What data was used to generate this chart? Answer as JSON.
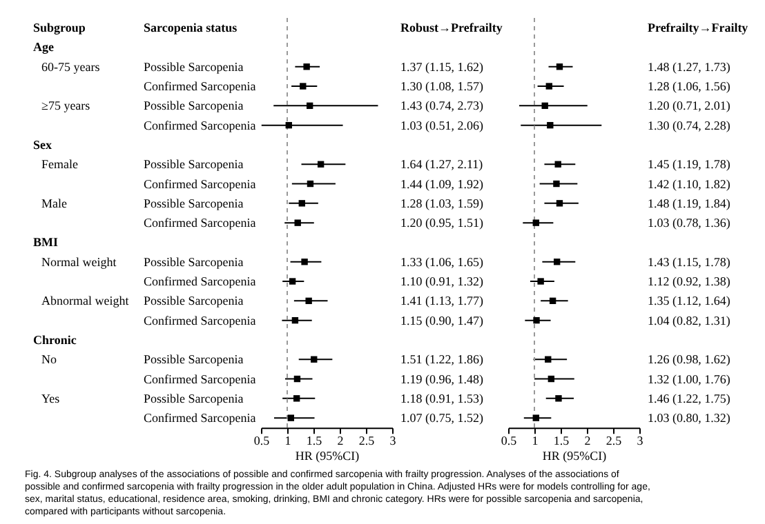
{
  "chart_data": [
    {
      "type": "scatter",
      "orientation": "horizontal",
      "title": "Robust→Prefrailty",
      "ylabel": "Sarcopenia status",
      "xlabel": "HR (95%CI)",
      "marker": "square",
      "color": "#000000",
      "categories": [
        null,
        "Possible Sarcopenia",
        "Confirmed Sarcopenia",
        "Possible Sarcopenia",
        "Confirmed Sarcopenia",
        null,
        "Possible Sarcopenia",
        "Confirmed Sarcopenia",
        "Possible Sarcopenia",
        "Confirmed Sarcopenia",
        null,
        "Possible Sarcopenia",
        "Confirmed Sarcopenia",
        "Possible Sarcopenia",
        "Confirmed Sarcopenia",
        null,
        "Possible Sarcopenia",
        "Confirmed Sarcopenia",
        "Possible Sarcopenia",
        "Confirmed Sarcopenia"
      ],
      "values": [
        null,
        1.37,
        1.3,
        1.43,
        1.03,
        null,
        1.64,
        1.44,
        1.28,
        1.2,
        null,
        1.33,
        1.1,
        1.41,
        1.15,
        null,
        1.51,
        1.19,
        1.18,
        1.07
      ],
      "errors": [
        null,
        [
          1.15,
          1.62
        ],
        [
          1.08,
          1.57
        ],
        [
          0.74,
          2.73
        ],
        [
          0.51,
          2.06
        ],
        null,
        [
          1.27,
          2.11
        ],
        [
          1.09,
          1.92
        ],
        [
          1.03,
          1.59
        ],
        [
          0.95,
          1.51
        ],
        null,
        [
          1.06,
          1.65
        ],
        [
          0.91,
          1.32
        ],
        [
          1.13,
          1.77
        ],
        [
          0.9,
          1.47
        ],
        null,
        [
          1.22,
          1.86
        ],
        [
          0.96,
          1.48
        ],
        [
          0.91,
          1.53
        ],
        [
          0.75,
          1.52
        ]
      ],
      "value_labels": [
        null,
        "1.37 (1.15, 1.62)",
        "1.30 (1.08, 1.57)",
        "1.43 (0.74, 2.73)",
        "1.03 (0.51, 2.06)",
        null,
        "1.64 (1.27, 2.11)",
        "1.44 (1.09, 1.92)",
        "1.28 (1.03, 1.59)",
        "1.20 (0.95, 1.51)",
        null,
        "1.33 (1.06, 1.65)",
        "1.10 (0.91, 1.32)",
        "1.41 (1.13, 1.77)",
        "1.15 (0.90, 1.47)",
        null,
        "1.51 (1.22, 1.86)",
        "1.19 (0.96, 1.48)",
        "1.18 (0.91, 1.53)",
        "1.07 (0.75, 1.52)"
      ],
      "xlim": [
        0.5,
        3
      ],
      "xticks": [
        0.5,
        1,
        1.5,
        2,
        2.5,
        3
      ],
      "ref_lines": [
        {
          "axis": "x",
          "value": 1,
          "line_style": "dashed",
          "color": "#999999"
        }
      ],
      "annotations": [
        "Subgroup",
        "Age",
        "60-75 years",
        "≥75 years",
        "Sex",
        "Female",
        "Male",
        "BMI",
        "Normal weight",
        "Abnormal weight",
        "Chronic",
        "No",
        "Yes",
        "Fig. 4. Subgroup analyses of the associations of possible and confirmed sarcopenia with frailty progression. Analyses of the associations of possible and confirmed sarcopenia with frailty progression in the older adult population in China. Adjusted HRs were for models controlling for age, sex, marital status, educational, residence area, smoking, drinking, BMI and chronic category. HRs were for possible sarcopenia and sarcopenia, compared with participants without sarcopenia."
      ]
    },
    {
      "type": "scatter",
      "orientation": "horizontal",
      "title": "Prefrailty→Frailty",
      "xlabel": "HR (95%CI)",
      "marker": "square",
      "color": "#000000",
      "categories": [
        null,
        null,
        null,
        null,
        null,
        null,
        null,
        null,
        null,
        null,
        null,
        null,
        null,
        null,
        null,
        null,
        null,
        null,
        null,
        null
      ],
      "values": [
        null,
        1.48,
        1.28,
        1.2,
        1.3,
        null,
        1.45,
        1.42,
        1.48,
        1.03,
        null,
        1.43,
        1.12,
        1.35,
        1.04,
        null,
        1.26,
        1.32,
        1.46,
        1.03
      ],
      "errors": [
        null,
        [
          1.27,
          1.73
        ],
        [
          1.06,
          1.56
        ],
        [
          0.71,
          2.01
        ],
        [
          0.74,
          2.28
        ],
        null,
        [
          1.19,
          1.78
        ],
        [
          1.1,
          1.82
        ],
        [
          1.19,
          1.84
        ],
        [
          0.78,
          1.36
        ],
        null,
        [
          1.15,
          1.78
        ],
        [
          0.92,
          1.38
        ],
        [
          1.12,
          1.64
        ],
        [
          0.82,
          1.31
        ],
        null,
        [
          0.98,
          1.62
        ],
        [
          1.0,
          1.76
        ],
        [
          1.22,
          1.75
        ],
        [
          0.8,
          1.32
        ]
      ],
      "value_labels": [
        null,
        "1.48 (1.27, 1.73)",
        "1.28 (1.06, 1.56)",
        "1.20 (0.71, 2.01)",
        "1.30 (0.74, 2.28)",
        null,
        "1.45 (1.19, 1.78)",
        "1.42 (1.10, 1.82)",
        "1.48 (1.19, 1.84)",
        "1.03 (0.78, 1.36)",
        null,
        "1.43 (1.15, 1.78)",
        "1.12 (0.92, 1.38)",
        "1.35 (1.12, 1.64)",
        "1.04 (0.82, 1.31)",
        null,
        "1.26 (0.98, 1.62)",
        "1.32 (1.00, 1.76)",
        "1.46 (1.22, 1.75)",
        "1.03 (0.80, 1.32)"
      ],
      "xlim": [
        0.5,
        3
      ],
      "xticks": [
        0.5,
        1,
        1.5,
        2,
        2.5,
        3
      ],
      "ref_lines": [
        {
          "axis": "x",
          "value": 1,
          "line_style": "dashed",
          "color": "#999999"
        }
      ]
    }
  ]
}
